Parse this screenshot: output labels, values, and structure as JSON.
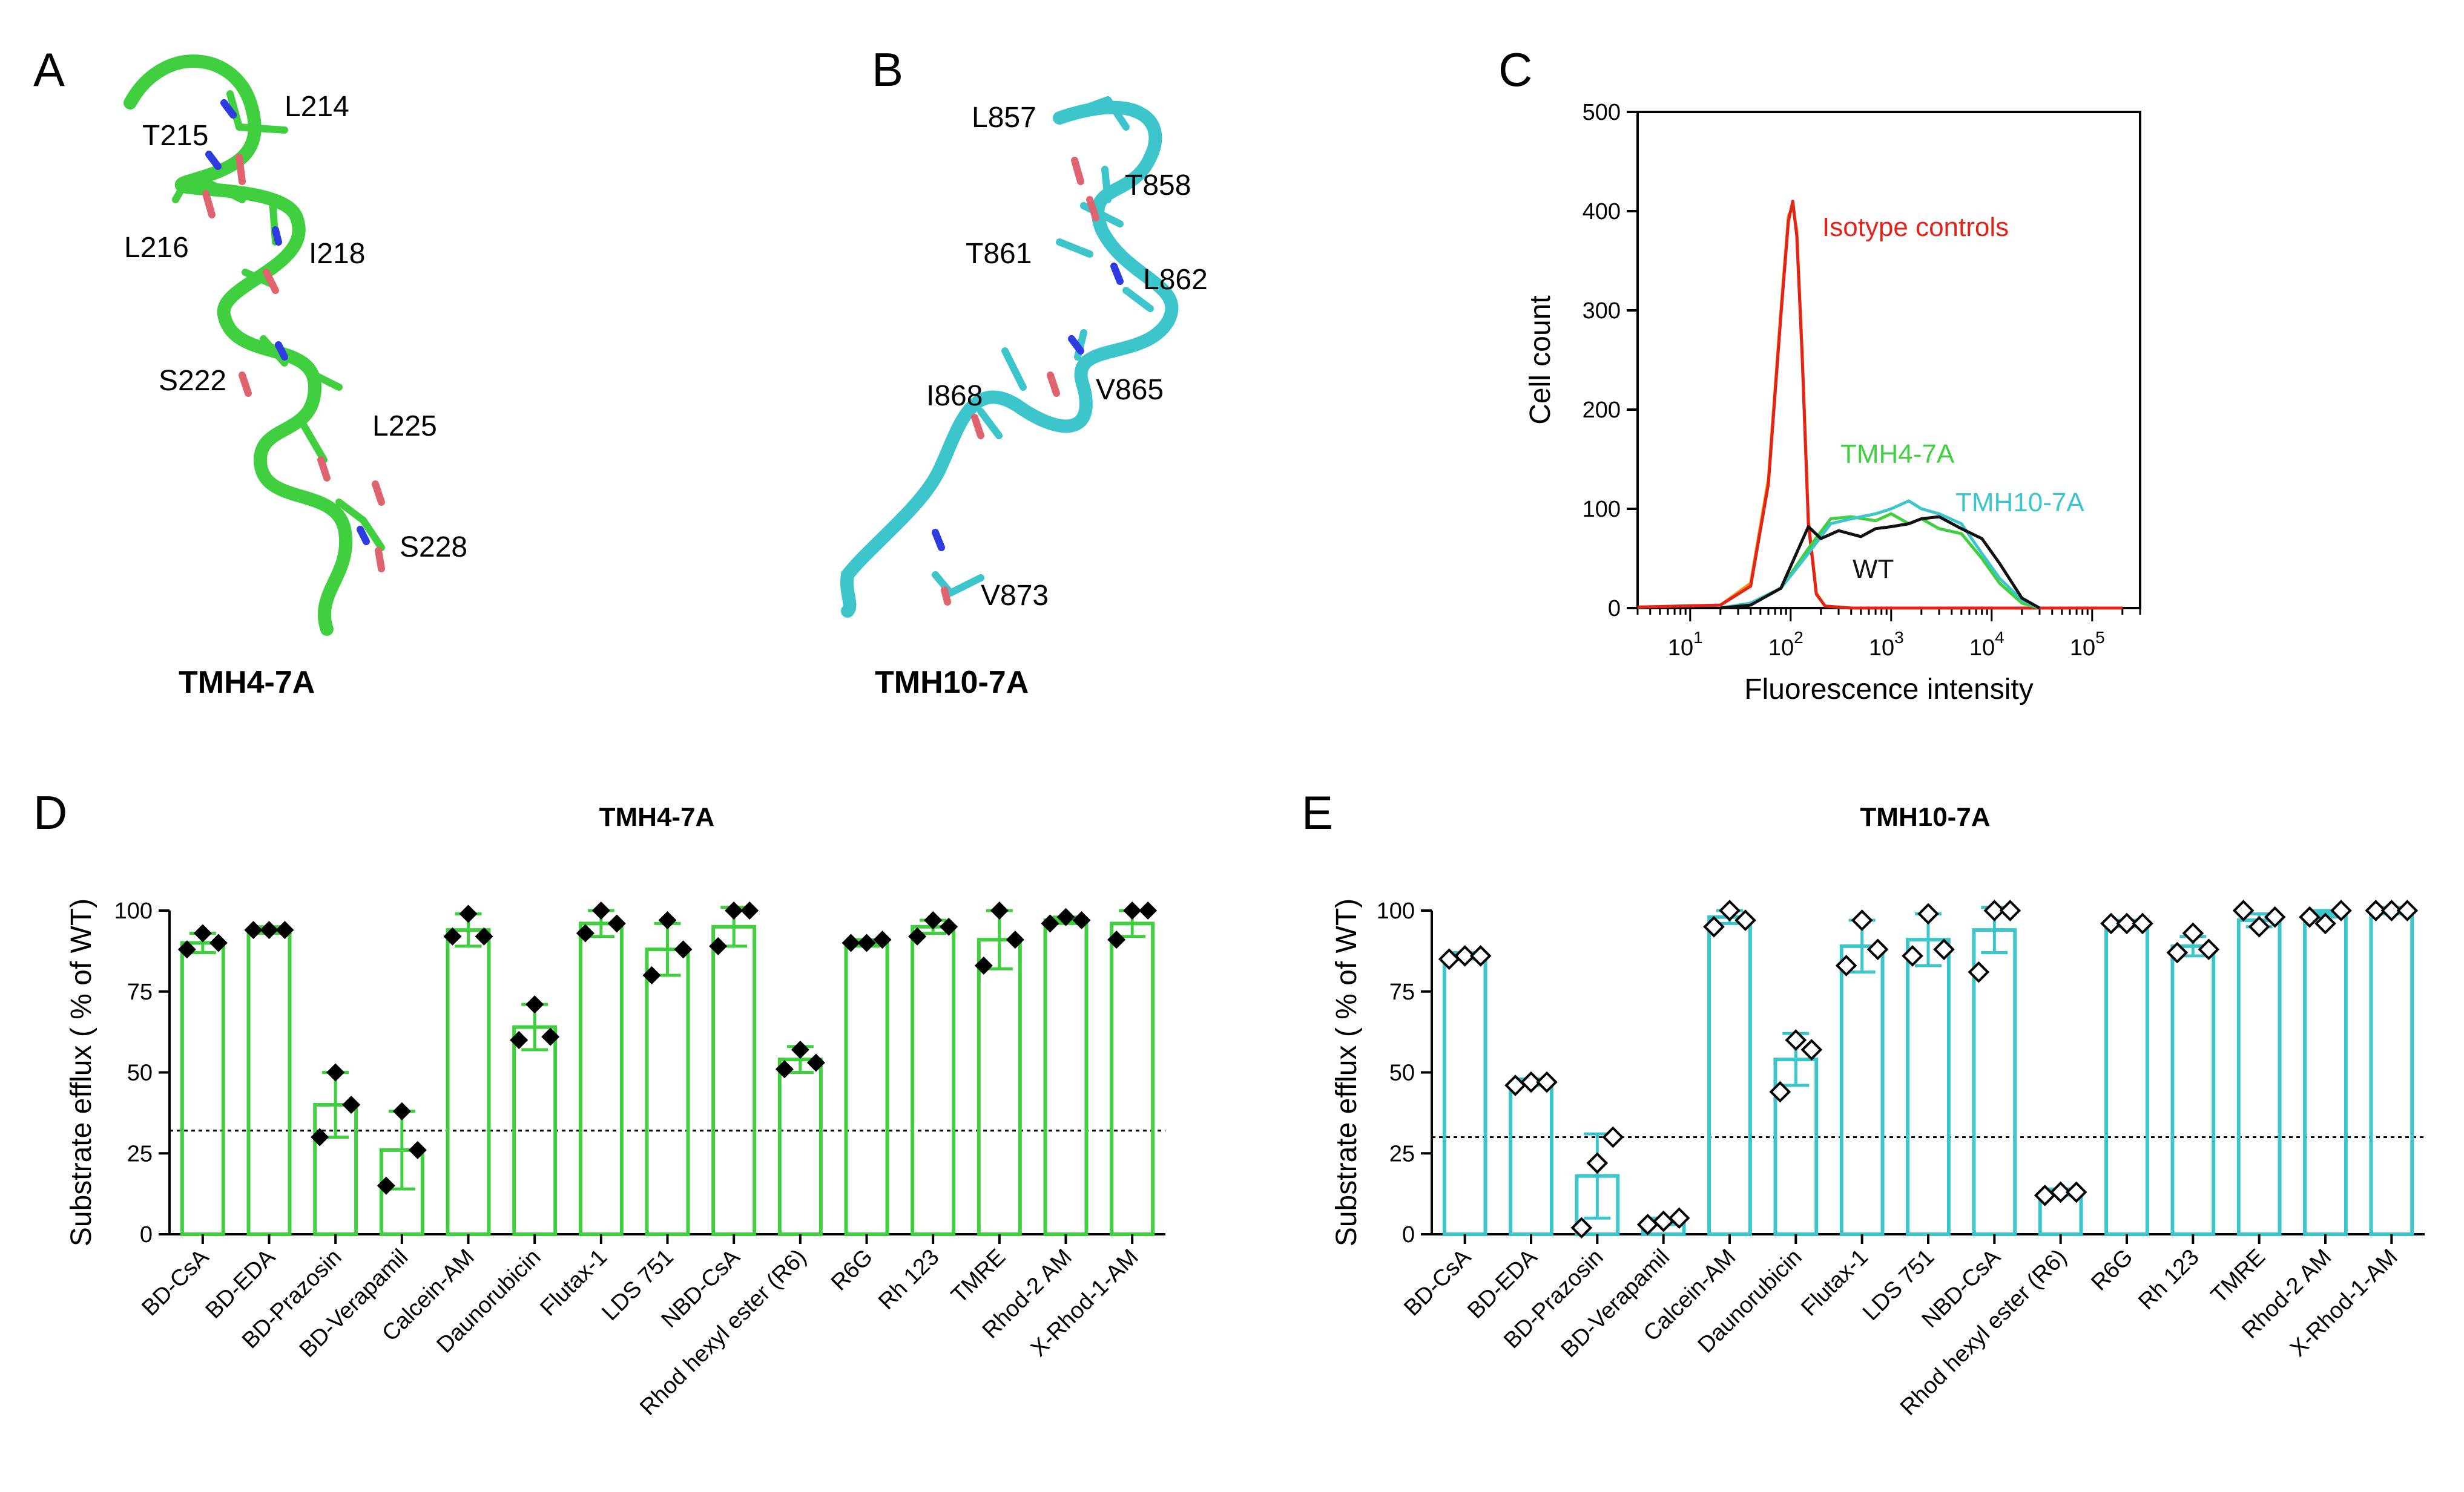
{
  "panels": {
    "a": {
      "label": "A",
      "caption": "TMH4-7A",
      "color": "#3fcf3f",
      "residues": [
        "L214",
        "T215",
        "L216",
        "I218",
        "S222",
        "L225",
        "S228"
      ]
    },
    "b": {
      "label": "B",
      "caption": "TMH10-7A",
      "color": "#3cc6cc",
      "residues": [
        "L857",
        "T858",
        "T861",
        "L862",
        "V865",
        "I868",
        "V873"
      ]
    },
    "c": {
      "label": "C"
    },
    "d": {
      "label": "D"
    },
    "e": {
      "label": "E"
    }
  },
  "chart_data": [
    {
      "id": "C",
      "type": "line",
      "xlabel": "Fluorescence intensity",
      "ylabel": "Cell count",
      "xscale": "log",
      "xlim": [
        3,
        300000
      ],
      "ylim": [
        0,
        500
      ],
      "yticks": [
        0,
        100,
        200,
        300,
        400,
        500
      ],
      "xtick_labels": [
        {
          "value": 10,
          "base": "10",
          "exp": "1"
        },
        {
          "value": 100,
          "base": "10",
          "exp": "2"
        },
        {
          "value": 1000,
          "base": "10",
          "exp": "3"
        },
        {
          "value": 10000,
          "base": "10",
          "exp": "4"
        },
        {
          "value": 100000,
          "base": "10",
          "exp": "5"
        }
      ],
      "series": [
        {
          "name": "Isotype controls",
          "color": "#ff8c00",
          "x": [
            3,
            20,
            40,
            60,
            80,
            95,
            105,
            115,
            130,
            150,
            180,
            220,
            300,
            400,
            1000,
            5000,
            30000,
            200000
          ],
          "y": [
            1,
            3,
            25,
            130,
            300,
            395,
            405,
            380,
            260,
            90,
            15,
            2,
            1,
            0,
            0,
            0,
            0,
            0
          ]
        },
        {
          "name": "Isotype controls",
          "color": "#e0241a",
          "x": [
            3,
            20,
            40,
            60,
            80,
            95,
            105,
            115,
            130,
            150,
            180,
            220,
            300,
            400,
            1000,
            5000,
            30000,
            200000
          ],
          "y": [
            1,
            3,
            22,
            125,
            295,
            390,
            410,
            375,
            255,
            85,
            14,
            2,
            1,
            0,
            0,
            0,
            0,
            0
          ]
        },
        {
          "name": "TMH4-7A",
          "color": "#3fcf3f",
          "x": [
            20,
            40,
            80,
            150,
            250,
            400,
            700,
            1000,
            1500,
            2000,
            3000,
            5000,
            8000,
            12000,
            20000,
            30000
          ],
          "y": [
            0,
            5,
            20,
            60,
            90,
            92,
            88,
            95,
            85,
            90,
            80,
            75,
            50,
            25,
            5,
            0
          ]
        },
        {
          "name": "TMH10-7A",
          "color": "#3cc6cc",
          "x": [
            20,
            40,
            80,
            150,
            250,
            400,
            700,
            1000,
            1500,
            2000,
            3000,
            5000,
            8000,
            12000,
            20000,
            30000
          ],
          "y": [
            0,
            5,
            20,
            55,
            85,
            90,
            95,
            100,
            108,
            100,
            95,
            85,
            55,
            30,
            8,
            0
          ]
        },
        {
          "name": "WT",
          "color": "#111111",
          "x": [
            20,
            40,
            80,
            120,
            150,
            200,
            300,
            500,
            700,
            1000,
            1500,
            2000,
            3000,
            5000,
            8000,
            12000,
            20000,
            30000
          ],
          "y": [
            0,
            3,
            20,
            60,
            82,
            70,
            78,
            72,
            80,
            82,
            85,
            90,
            92,
            80,
            70,
            45,
            10,
            0
          ]
        }
      ],
      "annotations": [
        {
          "text": "Isotype controls",
          "color": "#e0241a"
        },
        {
          "text": "TMH4-7A",
          "color": "#3fcf3f"
        },
        {
          "text": "TMH10-7A",
          "color": "#3cc6cc"
        },
        {
          "text": "WT",
          "color": "#111111"
        }
      ]
    },
    {
      "id": "D",
      "type": "bar",
      "title": "TMH4-7A",
      "ylabel": "Substrate efflux ( % of WT)",
      "ylim": [
        0,
        100
      ],
      "yticks": [
        0,
        25,
        50,
        75,
        100
      ],
      "reference_line": 32,
      "color": "#3fcf3f",
      "point_style": "filled",
      "categories": [
        "BD-CsA",
        "BD-EDA",
        "BD-Prazosin",
        "BD-Verapamil",
        "Calcein-AM",
        "Daunorubicin",
        "Flutax-1",
        "LDS 751",
        "NBD-CsA",
        "Rhod hexyl ester (R6)",
        "R6G",
        "Rh 123",
        "TMRE",
        "Rhod-2 AM",
        "X-Rhod-1-AM"
      ],
      "values": [
        90,
        94,
        40,
        26,
        94,
        64,
        96,
        88,
        95,
        54,
        90,
        95,
        91,
        97,
        96
      ],
      "errors": [
        3,
        1,
        10,
        12,
        5,
        7,
        4,
        8,
        6,
        4,
        1,
        2,
        9,
        1,
        4
      ],
      "points": [
        [
          88,
          93,
          90
        ],
        [
          94,
          94,
          94
        ],
        [
          30,
          50,
          40
        ],
        [
          15,
          38,
          26
        ],
        [
          92,
          99,
          92
        ],
        [
          60,
          71,
          61
        ],
        [
          93,
          100,
          96
        ],
        [
          80,
          97,
          88
        ],
        [
          89,
          100,
          100
        ],
        [
          51,
          57,
          53
        ],
        [
          90,
          90,
          91
        ],
        [
          92,
          97,
          95
        ],
        [
          83,
          100,
          91
        ],
        [
          96,
          98,
          97
        ],
        [
          91,
          100,
          100
        ]
      ]
    },
    {
      "id": "E",
      "type": "bar",
      "title": "TMH10-7A",
      "ylabel": "Substrate efflux ( % of WT)",
      "ylim": [
        0,
        100
      ],
      "yticks": [
        0,
        25,
        50,
        75,
        100
      ],
      "reference_line": 30,
      "color": "#3cc6cc",
      "point_style": "open",
      "categories": [
        "BD-CsA",
        "BD-EDA",
        "BD-Prazosin",
        "BD-Verapamil",
        "Calcein-AM",
        "Daunorubicin",
        "Flutax-1",
        "LDS 751",
        "NBD-CsA",
        "Rhod hexyl ester (R6)",
        "R6G",
        "Rh 123",
        "TMRE",
        "Rhod-2 AM",
        "X-Rhod-1-AM"
      ],
      "values": [
        86,
        47,
        18,
        4,
        98,
        54,
        89,
        91,
        94,
        13,
        96,
        89,
        97,
        99,
        100
      ],
      "errors": [
        1,
        1,
        13,
        1,
        2,
        8,
        8,
        8,
        7,
        1,
        1,
        3,
        2,
        1,
        1
      ],
      "points": [
        [
          85,
          86,
          86
        ],
        [
          46,
          47,
          47
        ],
        [
          2,
          22,
          30
        ],
        [
          3,
          4,
          5
        ],
        [
          95,
          100,
          97
        ],
        [
          44,
          60,
          57
        ],
        [
          83,
          97,
          88
        ],
        [
          86,
          99,
          88
        ],
        [
          81,
          100,
          100
        ],
        [
          12,
          13,
          13
        ],
        [
          96,
          96,
          96
        ],
        [
          87,
          93,
          88
        ],
        [
          100,
          95,
          98
        ],
        [
          98,
          96,
          100
        ],
        [
          100,
          100,
          100
        ]
      ]
    }
  ]
}
